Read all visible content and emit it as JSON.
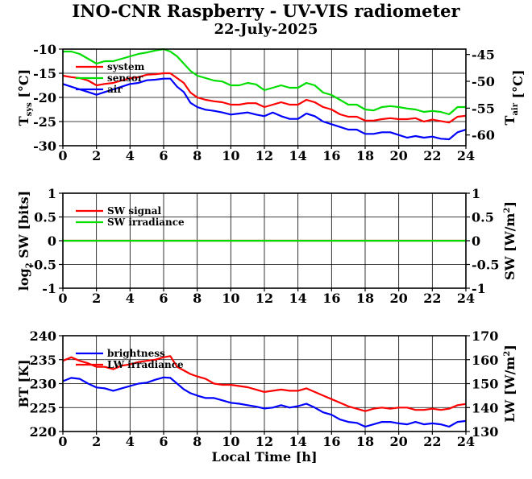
{
  "title": "INO-CNR Raspberry - UV-VIS radiometer",
  "date": "22-July-2025",
  "chart_data": [
    {
      "type": "line",
      "x_ticks": [
        "0",
        "2",
        "4",
        "6",
        "8",
        "10",
        "12",
        "14",
        "16",
        "18",
        "20",
        "22",
        "24"
      ],
      "xlim": [
        0,
        24
      ],
      "ylabel_left": "T",
      "ylabel_left_sub": "sys",
      "ylabel_left_unit": " [°C]",
      "ylabel_right": "T",
      "ylabel_right_sub": "air",
      "ylabel_right_unit": " [°C]",
      "ylim_left": [
        -30,
        -10
      ],
      "ylim_right": [
        -62,
        -44
      ],
      "y_ticks_left": [
        "-10",
        "-15",
        "-20",
        "-25",
        "-30"
      ],
      "y_ticks_right": [
        "-45",
        "-50",
        "-55",
        "-60"
      ],
      "grid": true,
      "legend": "top-left",
      "series": [
        {
          "name": "system",
          "color": "#ff0000",
          "axis": "left",
          "x": [
            0,
            0.5,
            1,
            1.5,
            2,
            2.5,
            3,
            3.5,
            4,
            4.5,
            5,
            5.5,
            6,
            6.4,
            6.8,
            7.2,
            7.6,
            8,
            8.5,
            9,
            9.5,
            10,
            10.5,
            11,
            11.5,
            12,
            12.5,
            13,
            13.5,
            14,
            14.5,
            15,
            15.5,
            16,
            16.5,
            17,
            17.5,
            18,
            18.5,
            19,
            19.5,
            20,
            20.5,
            21,
            21.5,
            22,
            22.5,
            23,
            23.5,
            24
          ],
          "y": [
            -15.5,
            -15.8,
            -16,
            -16.5,
            -17.5,
            -17.2,
            -17,
            -16.5,
            -16,
            -15.8,
            -15.3,
            -15.2,
            -15,
            -15,
            -16,
            -17,
            -19,
            -20,
            -20.5,
            -20.8,
            -21,
            -21.5,
            -21.5,
            -21.2,
            -21.2,
            -22,
            -21.5,
            -21,
            -21.5,
            -21.5,
            -20.5,
            -21,
            -22,
            -22.5,
            -23.5,
            -24,
            -24,
            -24.8,
            -24.8,
            -24.5,
            -24.3,
            -24.5,
            -24.5,
            -24.3,
            -25,
            -24.6,
            -24.9,
            -25.2,
            -24,
            -23.8
          ]
        },
        {
          "name": "sensor",
          "color": "#00dd00",
          "axis": "left",
          "x": [
            0,
            0.5,
            1,
            1.5,
            2,
            2.5,
            3,
            3.5,
            4,
            4.5,
            5,
            5.5,
            6,
            6.4,
            6.8,
            7.2,
            7.6,
            8,
            8.5,
            9,
            9.5,
            10,
            10.5,
            11,
            11.5,
            12,
            12.5,
            13,
            13.5,
            14,
            14.5,
            15,
            15.5,
            16,
            16.5,
            17,
            17.5,
            18,
            18.5,
            19,
            19.5,
            20,
            20.5,
            21,
            21.5,
            22,
            22.5,
            23,
            23.5,
            24
          ],
          "y": [
            -10.5,
            -10.5,
            -11,
            -12,
            -13,
            -12.5,
            -12.5,
            -12,
            -11.5,
            -11,
            -10.7,
            -10.3,
            -10,
            -10.5,
            -11.5,
            -13,
            -14.5,
            -15.5,
            -16,
            -16.5,
            -16.7,
            -17.5,
            -17.5,
            -17,
            -17.3,
            -18.5,
            -18,
            -17.5,
            -18,
            -18,
            -17,
            -17.5,
            -19,
            -19.5,
            -20.5,
            -21.5,
            -21.5,
            -22.5,
            -22.7,
            -22,
            -21.8,
            -22,
            -22.3,
            -22.5,
            -23,
            -22.8,
            -23,
            -23.5,
            -22,
            -22
          ]
        },
        {
          "name": "air",
          "color": "#0000ff",
          "axis": "right",
          "x": [
            0,
            0.5,
            1,
            1.5,
            2,
            2.5,
            3,
            3.5,
            4,
            4.5,
            5,
            5.5,
            6,
            6.4,
            6.8,
            7.2,
            7.6,
            8,
            8.5,
            9,
            9.5,
            10,
            10.5,
            11,
            11.5,
            12,
            12.5,
            13,
            13.5,
            14,
            14.5,
            15,
            15.5,
            16,
            16.5,
            17,
            17.5,
            18,
            18.5,
            19,
            19.5,
            20,
            20.5,
            21,
            21.5,
            22,
            22.5,
            23,
            23.5,
            24
          ],
          "y": [
            -50.5,
            -51,
            -51.5,
            -52,
            -52.5,
            -52,
            -51.5,
            -51,
            -50.5,
            -50.3,
            -49.8,
            -49.7,
            -49.5,
            -49.5,
            -51,
            -52,
            -54,
            -54.8,
            -55.3,
            -55.5,
            -55.8,
            -56.2,
            -56,
            -55.8,
            -56.2,
            -56.5,
            -55.8,
            -56.5,
            -57,
            -57,
            -56,
            -56.5,
            -57.5,
            -58,
            -58.5,
            -59,
            -59,
            -59.8,
            -59.8,
            -59.5,
            -59.5,
            -60,
            -60.5,
            -60.2,
            -60.5,
            -60.3,
            -60.7,
            -60.8,
            -59.5,
            -59
          ]
        }
      ]
    },
    {
      "type": "line",
      "x_ticks": [
        "0",
        "2",
        "4",
        "6",
        "8",
        "10",
        "12",
        "14",
        "16",
        "18",
        "20",
        "22",
        "24"
      ],
      "xlim": [
        0,
        24
      ],
      "ylabel_left": "log",
      "ylabel_left_sub": "2",
      "ylabel_left_unit": " SW [bits]",
      "ylabel_right": "SW [W/m",
      "ylabel_right_sup": "2",
      "ylabel_right_unit": "]",
      "ylim_left": [
        -1,
        1
      ],
      "ylim_right": [
        -1,
        1
      ],
      "y_ticks_left": [
        "1",
        "0.5",
        "0",
        "-0.5",
        "-1"
      ],
      "y_ticks_right": [
        "1",
        "0.5",
        "0",
        "-0.5",
        "-1"
      ],
      "grid": true,
      "legend": "top-left",
      "series": [
        {
          "name": "SW signal",
          "color": "#ff0000",
          "axis": "left",
          "x": [
            0,
            24
          ],
          "y": [
            0,
            0
          ]
        },
        {
          "name": "SW irradiance",
          "color": "#00dd00",
          "axis": "right",
          "x": [
            0,
            24
          ],
          "y": [
            0,
            0
          ]
        }
      ]
    },
    {
      "type": "line",
      "x_ticks": [
        "0",
        "2",
        "4",
        "6",
        "8",
        "10",
        "12",
        "14",
        "16",
        "18",
        "20",
        "22",
        "24"
      ],
      "xlim": [
        0,
        24
      ],
      "xlabel": "Local Time [h]",
      "ylabel_left": "BT [K]",
      "ylabel_right": "LW [W/m",
      "ylabel_right_sup": "2",
      "ylabel_right_unit": "]",
      "ylim_left": [
        220,
        240
      ],
      "ylim_right": [
        130,
        170
      ],
      "y_ticks_left": [
        "240",
        "235",
        "230",
        "225",
        "220"
      ],
      "y_ticks_right": [
        "170",
        "160",
        "150",
        "140",
        "130"
      ],
      "grid": true,
      "legend": "top-left",
      "series": [
        {
          "name": "brightness",
          "color": "#0000ff",
          "axis": "left",
          "x": [
            0,
            0.5,
            1,
            1.5,
            2,
            2.5,
            3,
            3.5,
            4,
            4.5,
            5,
            5.5,
            6,
            6.4,
            6.8,
            7.2,
            7.6,
            8,
            8.5,
            9,
            9.5,
            10,
            10.5,
            11,
            11.5,
            12,
            12.5,
            13,
            13.5,
            14,
            14.5,
            15,
            15.5,
            16,
            16.5,
            17,
            17.5,
            18,
            18.5,
            19,
            19.5,
            20,
            20.5,
            21,
            21.5,
            22,
            22.5,
            23,
            23.5,
            24
          ],
          "y": [
            230.5,
            231.2,
            231,
            230,
            229.2,
            229,
            228.5,
            229,
            229.5,
            230,
            230.2,
            230.8,
            231.3,
            231.2,
            230,
            228.8,
            228,
            227.5,
            227,
            227,
            226.5,
            226,
            225.8,
            225.5,
            225.2,
            224.8,
            225,
            225.5,
            225,
            225.3,
            225.8,
            225,
            224,
            223.5,
            222.5,
            222,
            221.8,
            221,
            221.5,
            222,
            222,
            221.7,
            221.5,
            222,
            221.5,
            221.7,
            221.5,
            221,
            222,
            222.2
          ]
        },
        {
          "name": "LW irradiance",
          "color": "#ff0000",
          "axis": "right",
          "x": [
            0,
            0.5,
            1,
            1.5,
            2,
            2.5,
            3,
            3.5,
            4,
            4.5,
            5,
            5.5,
            6,
            6.4,
            6.8,
            7.2,
            7.6,
            8,
            8.5,
            9,
            9.5,
            10,
            10.5,
            11,
            11.5,
            12,
            12.5,
            13,
            13.5,
            14,
            14.5,
            15,
            15.5,
            16,
            16.5,
            17,
            17.5,
            18,
            18.5,
            19,
            19.5,
            20,
            20.5,
            21,
            21.5,
            22,
            22.5,
            23,
            23.5,
            24
          ],
          "y": [
            159.5,
            161,
            159.5,
            158.5,
            157,
            157,
            156,
            157.5,
            158,
            159,
            159.5,
            160,
            161,
            161.5,
            157,
            155.5,
            154,
            153,
            152,
            150,
            149.5,
            149.5,
            149,
            148.5,
            147.5,
            146.5,
            147,
            147.5,
            147,
            147,
            148,
            146.5,
            145,
            143.5,
            142,
            140.5,
            139.5,
            138.5,
            139.5,
            140,
            139.5,
            140,
            140,
            139,
            139,
            139.5,
            139,
            139.5,
            141,
            141.5
          ]
        }
      ]
    }
  ]
}
